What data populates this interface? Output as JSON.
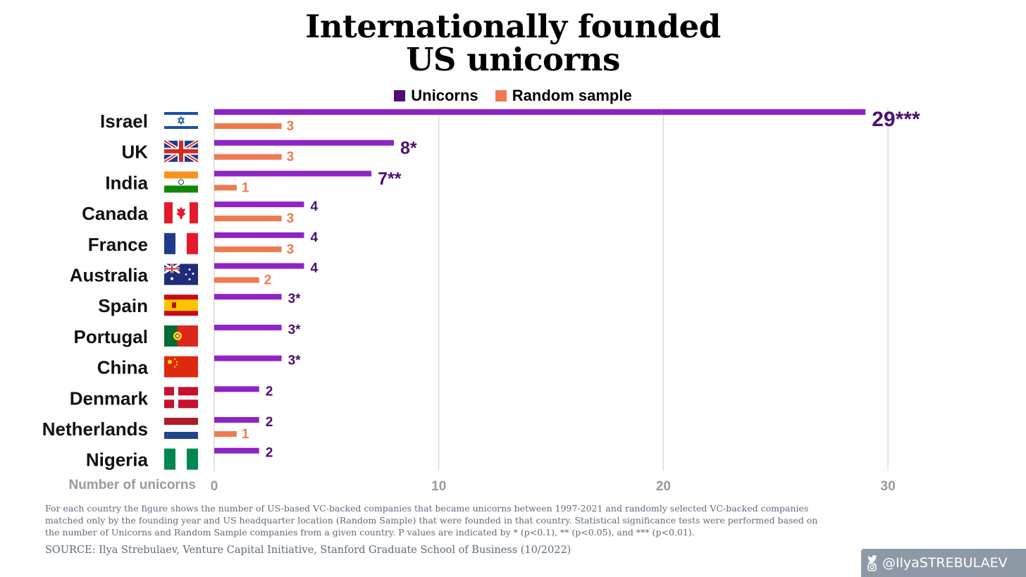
{
  "title_line1": "Internationally founded",
  "title_line2": "US unicorns",
  "legend": [
    {
      "label": "Unicorns",
      "color": "#4b1070"
    },
    {
      "label": "Random sample",
      "color": "#ee7a50"
    }
  ],
  "colors": {
    "unicorn_bar": "#8e24c4",
    "unicorn_label": "#4b1070",
    "sample_bar": "#ee7a50",
    "sample_label": "#ee7a50",
    "gridline": "#d6d6d6",
    "axis_text": "#9a9a9a"
  },
  "chart_data": {
    "type": "bar",
    "orientation": "horizontal",
    "categories": [
      "Israel",
      "UK",
      "India",
      "Canada",
      "France",
      "Australia",
      "Spain",
      "Portugal",
      "China",
      "Denmark",
      "Netherlands",
      "Nigeria"
    ],
    "series": [
      {
        "name": "Unicorns",
        "values": [
          29,
          8,
          7,
          4,
          4,
          4,
          3,
          3,
          3,
          2,
          2,
          2
        ],
        "labels": [
          "29***",
          "8*",
          "7**",
          "4",
          "4",
          "4",
          "3*",
          "3*",
          "3*",
          "2",
          "2",
          "2"
        ]
      },
      {
        "name": "Random sample",
        "values": [
          3,
          3,
          1,
          3,
          3,
          2,
          null,
          null,
          null,
          null,
          1,
          null
        ],
        "labels": [
          "3",
          "3",
          "1",
          "3",
          "3",
          "2",
          "",
          "",
          "",
          "",
          "1",
          ""
        ]
      }
    ],
    "xlabel": "Number of unicorns",
    "xlim": [
      0,
      33
    ],
    "xticks": [
      0,
      10,
      20,
      30
    ],
    "grid": "vertical",
    "legend_position": "top"
  },
  "footnote": "For each country the figure shows the number of US-based VC-backed companies that became unicorns between 1997-2021 and randomly selected VC-backed companies matched only by the founding year and US headquarter location (Random Sample) that were founded in that country. Statistical significance tests were performed based on the number of Unicorns and Random Sample companies from a given country. P values are indicated by * (p<0.1), ** (p<0.05), and *** (p<0.01).",
  "source": "SOURCE: Ilya Strebulaev, Venture Capital Initiative, Stanford Graduate School of Business (10/2022)",
  "social": {
    "handle": "@IlyaSTREBULAEV",
    "icons": [
      "twitter-icon",
      "instagram-icon"
    ]
  }
}
